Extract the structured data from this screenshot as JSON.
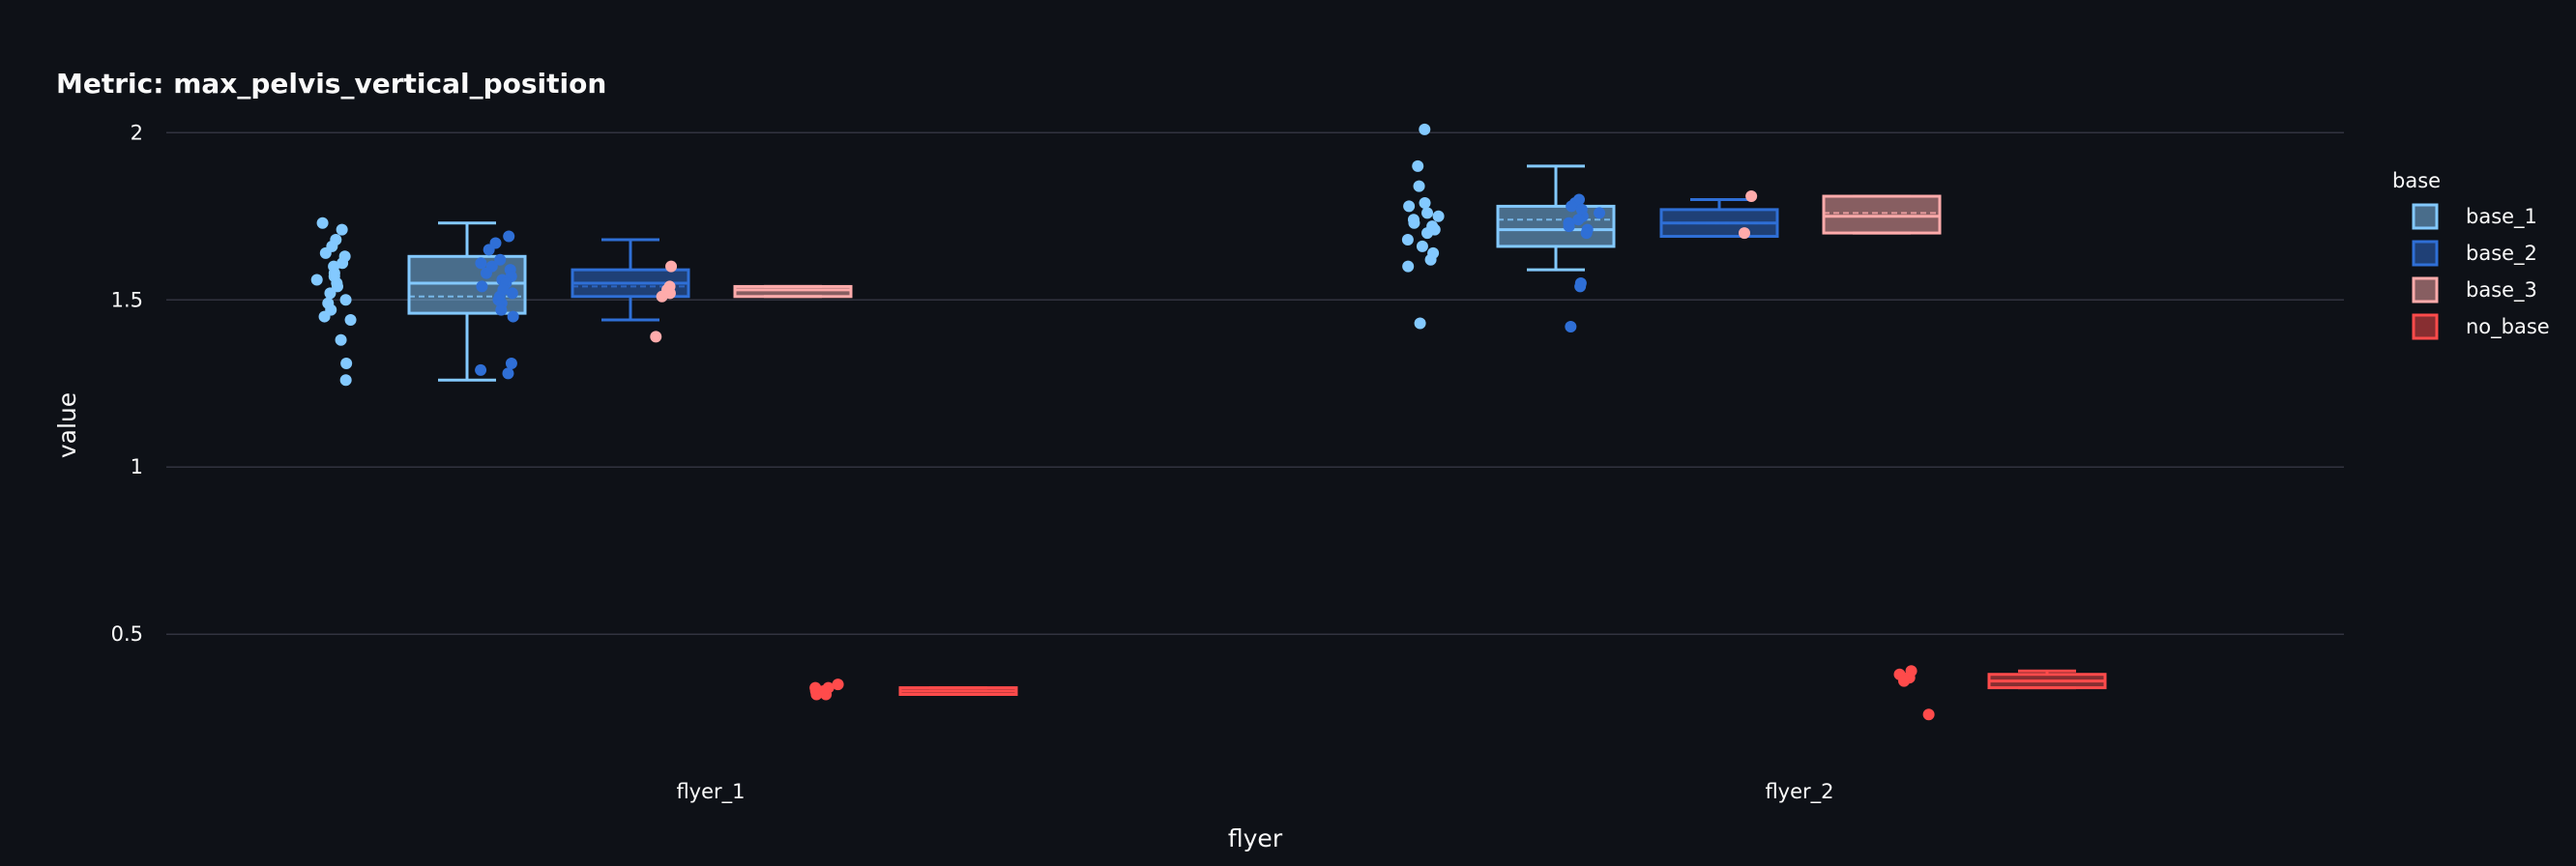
{
  "chart_data": {
    "type": "box",
    "title": "Metric: max_pelvis_vertical_position",
    "xlabel": "flyer",
    "ylabel": "value",
    "categories": [
      "flyer_1",
      "flyer_2"
    ],
    "ylim": [
      0.2,
      2.05
    ],
    "yticks": [
      0.5,
      1,
      1.5,
      2
    ],
    "yticklabels": [
      "0.5",
      "1",
      "1.5",
      "2"
    ],
    "grid": true,
    "legend": {
      "title": "base",
      "position": "right"
    },
    "series": [
      {
        "name": "base_1",
        "color": "#83c9ff",
        "boxes": [
          {
            "category": "flyer_1",
            "min": 1.26,
            "q1": 1.46,
            "median": 1.55,
            "q3": 1.63,
            "max": 1.73,
            "mean": 1.51,
            "points": [
              1.73,
              1.71,
              1.68,
              1.66,
              1.64,
              1.63,
              1.61,
              1.6,
              1.58,
              1.57,
              1.56,
              1.55,
              1.54,
              1.52,
              1.5,
              1.49,
              1.47,
              1.45,
              1.44,
              1.38,
              1.31,
              1.26
            ]
          },
          {
            "category": "flyer_2",
            "min": 1.59,
            "q1": 1.66,
            "median": 1.71,
            "q3": 1.78,
            "max": 1.9,
            "mean": 1.74,
            "points": [
              2.01,
              1.9,
              1.84,
              1.79,
              1.78,
              1.76,
              1.75,
              1.74,
              1.73,
              1.72,
              1.71,
              1.7,
              1.68,
              1.66,
              1.64,
              1.62,
              1.6,
              1.43
            ]
          }
        ]
      },
      {
        "name": "base_2",
        "color": "#2f6fd6",
        "boxes": [
          {
            "category": "flyer_1",
            "min": 1.44,
            "q1": 1.51,
            "median": 1.55,
            "q3": 1.59,
            "max": 1.68,
            "mean": 1.54,
            "points": [
              1.69,
              1.67,
              1.65,
              1.62,
              1.61,
              1.6,
              1.59,
              1.58,
              1.57,
              1.56,
              1.55,
              1.54,
              1.53,
              1.52,
              1.51,
              1.5,
              1.49,
              1.47,
              1.45,
              1.31,
              1.29,
              1.28
            ]
          },
          {
            "category": "flyer_2",
            "min": 1.69,
            "q1": 1.69,
            "median": 1.73,
            "q3": 1.77,
            "max": 1.8,
            "mean": 1.73,
            "points": [
              1.8,
              1.79,
              1.78,
              1.77,
              1.76,
              1.75,
              1.74,
              1.73,
              1.72,
              1.71,
              1.7,
              1.55,
              1.54,
              1.42
            ]
          }
        ]
      },
      {
        "name": "base_3",
        "color": "#ffabab",
        "boxes": [
          {
            "category": "flyer_1",
            "min": 1.51,
            "q1": 1.51,
            "median": 1.53,
            "q3": 1.54,
            "max": 1.54,
            "mean": 1.53,
            "points": [
              1.6,
              1.54,
              1.53,
              1.52,
              1.51,
              1.39
            ]
          },
          {
            "category": "flyer_2",
            "min": 1.7,
            "q1": 1.7,
            "median": 1.75,
            "q3": 1.81,
            "max": 1.81,
            "mean": 1.76,
            "points": [
              1.81,
              1.7
            ]
          }
        ]
      },
      {
        "name": "no_base",
        "color": "#ff4b4b",
        "boxes": [
          {
            "category": "flyer_1",
            "min": 0.32,
            "q1": 0.32,
            "median": 0.33,
            "q3": 0.34,
            "max": 0.34,
            "mean": 0.33,
            "points": [
              0.35,
              0.34,
              0.34,
              0.33,
              0.33,
              0.32,
              0.32
            ]
          },
          {
            "category": "flyer_2",
            "min": 0.34,
            "q1": 0.34,
            "median": 0.36,
            "q3": 0.38,
            "max": 0.39,
            "mean": 0.36,
            "points": [
              0.39,
              0.38,
              0.37,
              0.37,
              0.36,
              0.26
            ]
          }
        ]
      }
    ]
  }
}
